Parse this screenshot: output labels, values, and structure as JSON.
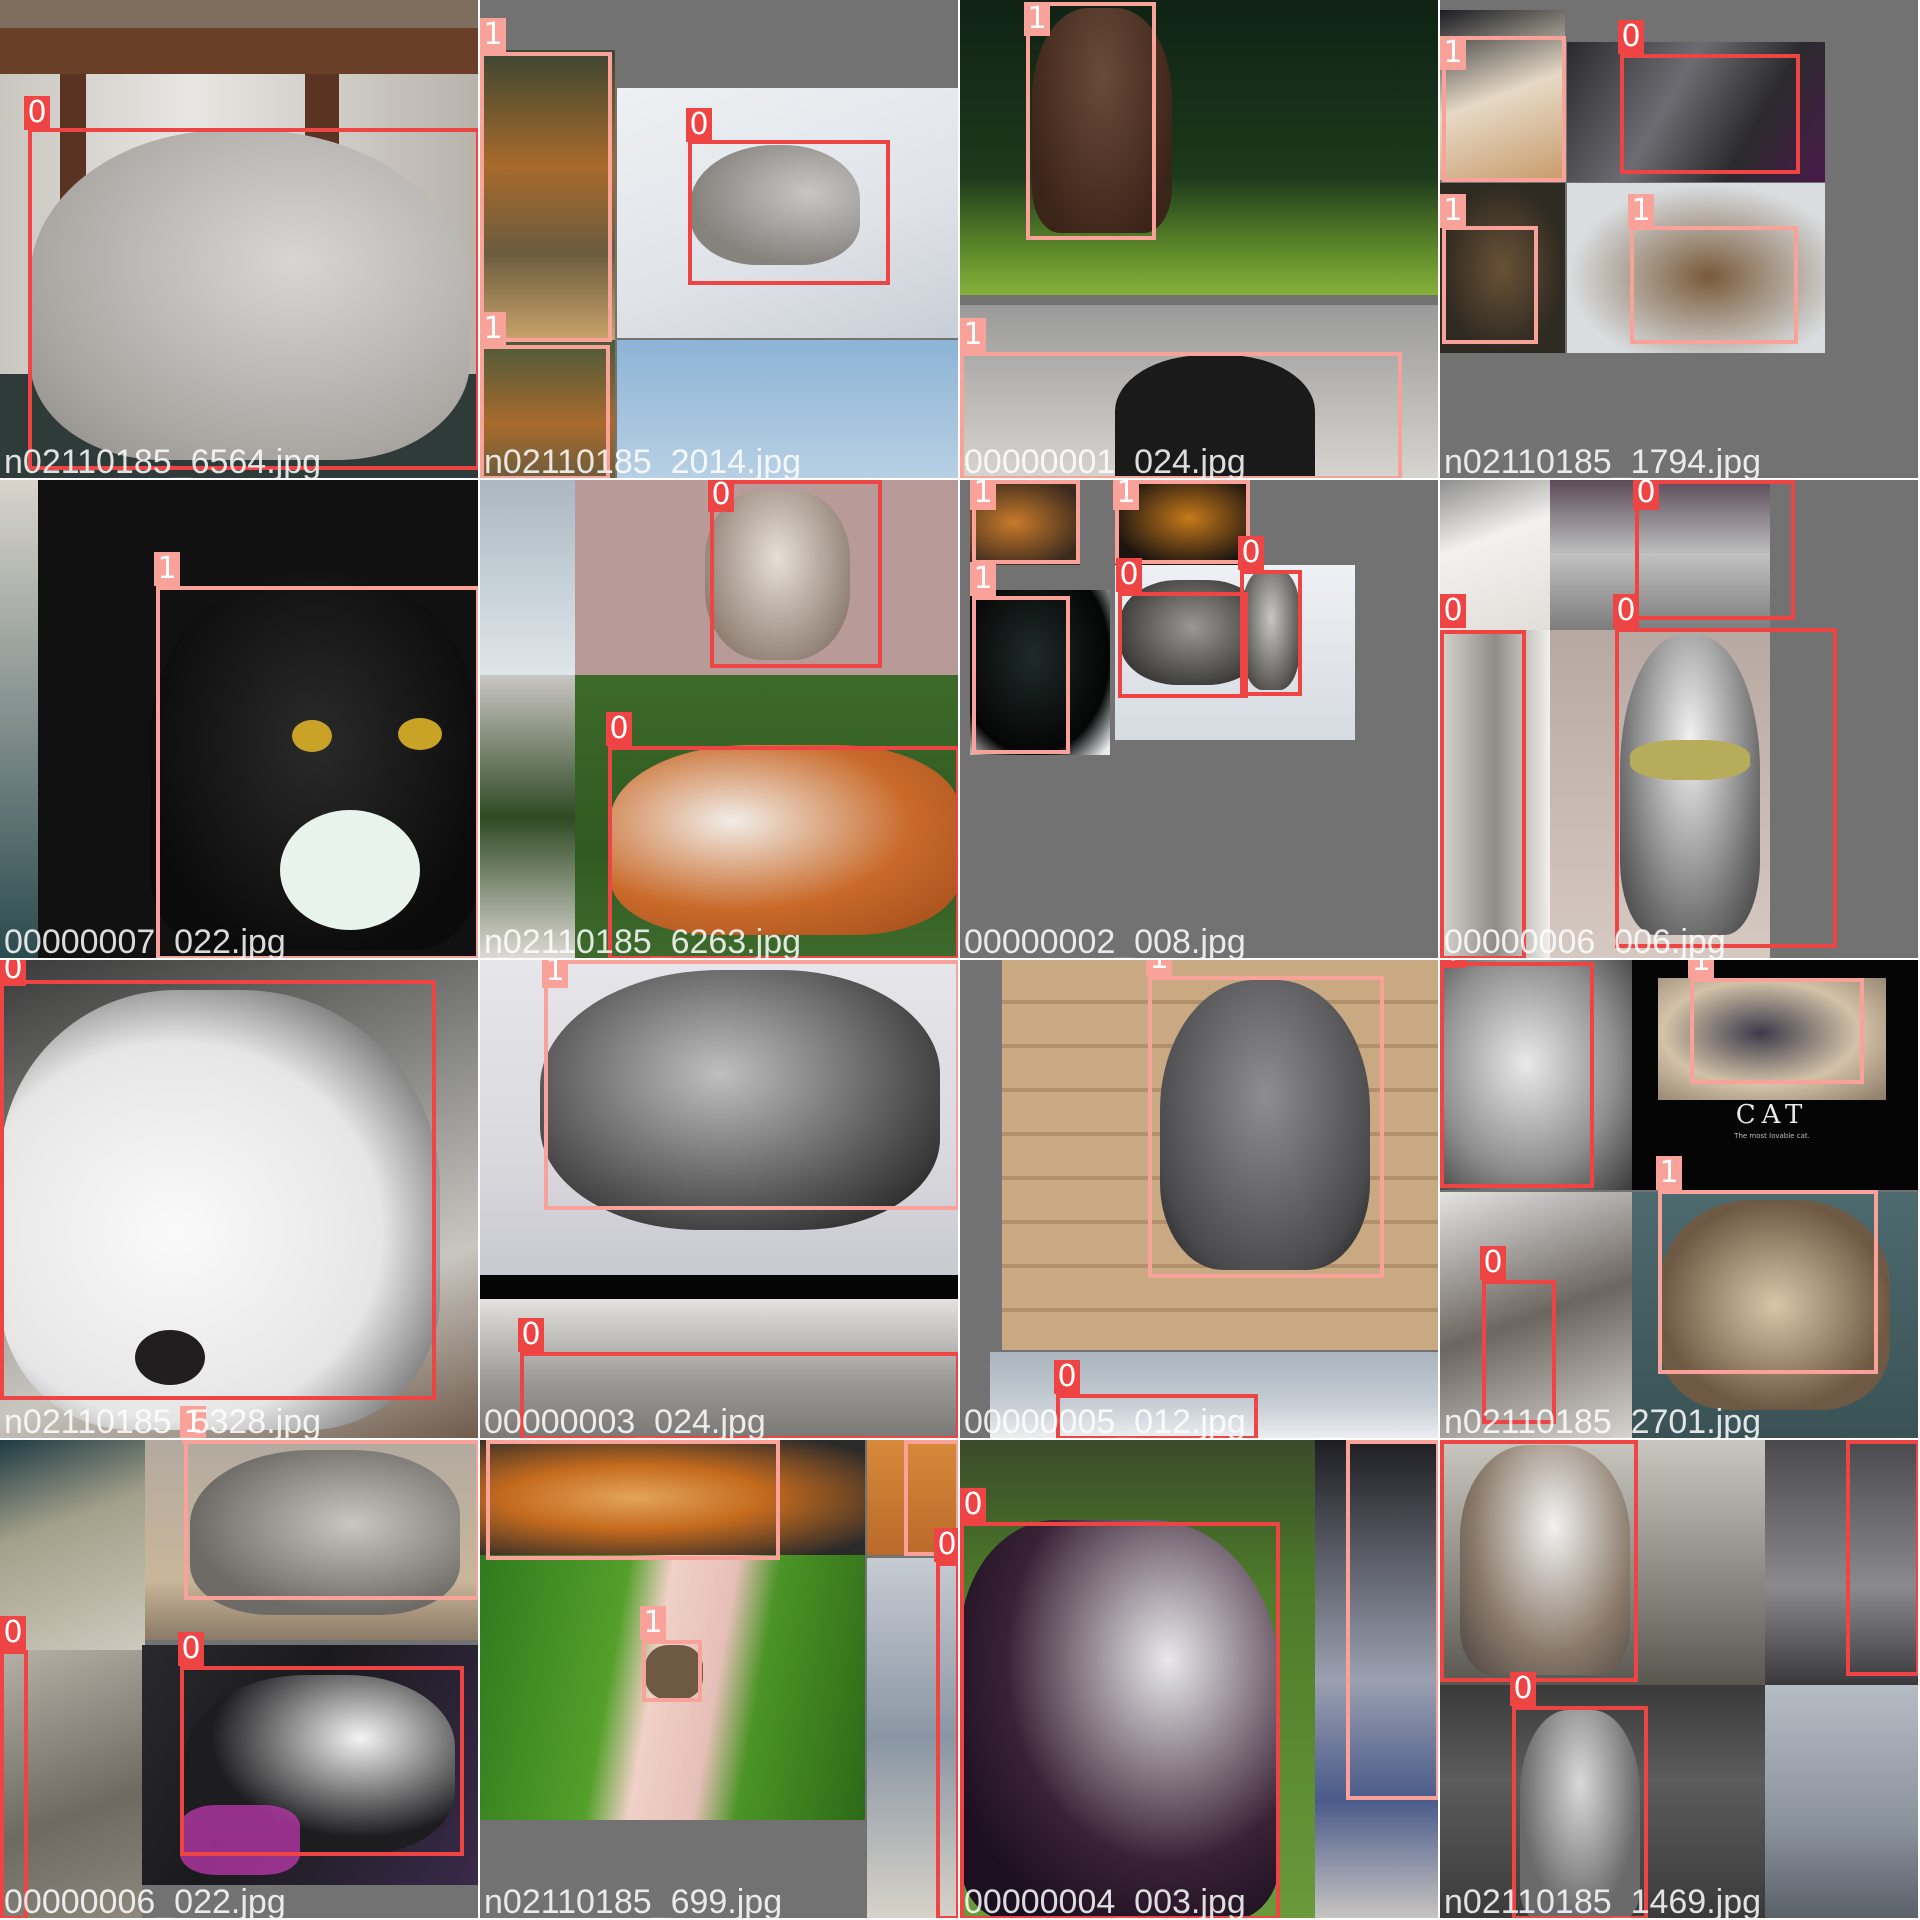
{
  "mosaic": {
    "grid": "4x4",
    "label_colors": {
      "0": "#ef4444",
      "1": "#f8a29a"
    },
    "tiles": [
      {
        "filename": "n02110185_6564.jpg",
        "scene": "grey husky puppy under a wooden stool",
        "labels": [
          "0"
        ]
      },
      {
        "filename": "n02110185_2014.jpg",
        "scene": "husky lying in snow, kitchen crops",
        "labels": [
          "1",
          "0",
          "1"
        ]
      },
      {
        "filename": "00000001_024.jpg",
        "scene": "cat on grass, cat ears peeking",
        "labels": [
          "1",
          "1"
        ]
      },
      {
        "filename": "n02110185_1794.jpg",
        "scene": "husky on a rug, tabby cats",
        "labels": [
          "1",
          "0",
          "1",
          "1"
        ]
      },
      {
        "filename": "00000007_022.jpg",
        "scene": "black and white tuxedo cat",
        "labels": [
          "1"
        ]
      },
      {
        "filename": "n02110185_6263.jpg",
        "scene": "fluffy cat, red husky on grass",
        "labels": [
          "0",
          "0"
        ]
      },
      {
        "filename": "00000002_008.jpg",
        "scene": "huskies in snow, black cat",
        "labels": [
          "1",
          "1",
          "1",
          "0",
          "0"
        ]
      },
      {
        "filename": "00000006_006.jpg",
        "scene": "husky with tinsel on tile floor",
        "labels": [
          "0",
          "0",
          "0"
        ]
      },
      {
        "filename": "n02110185_5328.jpg",
        "scene": "white husky close-up",
        "labels": [
          "0",
          "1"
        ]
      },
      {
        "filename": "00000003_024.jpg",
        "scene": "tabby cat lying on bed",
        "labels": [
          "1",
          "0"
        ]
      },
      {
        "filename": "00000005_012.jpg",
        "scene": "grey cat sitting on a deck",
        "labels": [
          "1",
          "0"
        ]
      },
      {
        "filename": "n02110185_2701.jpg",
        "scene": "husky face, siamese cat CAT poster, tabby kitten",
        "labels": [
          "0",
          "1",
          "1",
          "0"
        ],
        "poster_title": "CAT",
        "poster_caption": "The most lovable cat."
      },
      {
        "filename": "00000006_022.jpg",
        "scene": "grey kitten, husky on a blanket",
        "labels": [
          "1",
          "0",
          "0"
        ]
      },
      {
        "filename": "n02110185_699.jpg",
        "scene": "ginger cat, cat on a garden path",
        "labels": [
          "1",
          "1",
          "1",
          "0"
        ]
      },
      {
        "filename": "00000004_003.jpg",
        "scene": "black and white husky standing on grass",
        "labels": [
          "0",
          "1"
        ]
      },
      {
        "filename": "n02110185_1469.jpg",
        "scene": "grey husky sitting indoors",
        "labels": [
          "0",
          "0",
          "0"
        ]
      }
    ]
  }
}
